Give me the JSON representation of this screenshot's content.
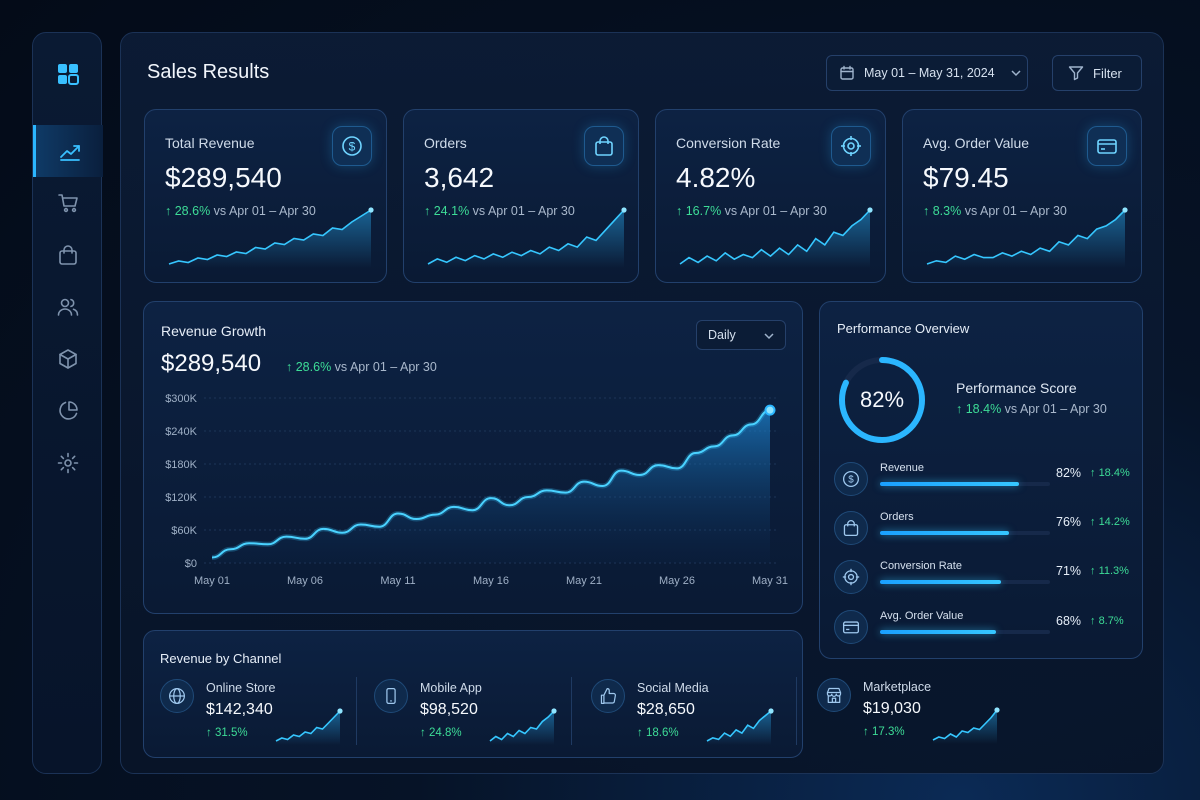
{
  "header": {
    "title": "Sales Results",
    "date_range": "May 01 – May 31, 2024",
    "filter_label": "Filter"
  },
  "sidebar": {
    "logo_icon": "grid-logo-icon",
    "items": [
      {
        "icon": "trend-chart-icon",
        "active": true
      },
      {
        "icon": "cart-icon",
        "active": false
      },
      {
        "icon": "shopping-bag-icon",
        "active": false
      },
      {
        "icon": "users-icon",
        "active": false
      },
      {
        "icon": "box-icon",
        "active": false
      },
      {
        "icon": "pie-chart-icon",
        "active": false
      },
      {
        "icon": "gear-icon",
        "active": false
      }
    ]
  },
  "kpis": [
    {
      "label": "Total Revenue",
      "value": "$289,540",
      "change": "28.6%",
      "compare": "vs Apr 01 – Apr 30",
      "icon": "dollar-icon",
      "spark": [
        8,
        10,
        9,
        12,
        11,
        14,
        13,
        16,
        15,
        19,
        18,
        22,
        21,
        25,
        24,
        28,
        27,
        32,
        31,
        36,
        40,
        44
      ]
    },
    {
      "label": "Orders",
      "value": "3,642",
      "change": "24.1%",
      "compare": "vs Apr 01 – Apr 30",
      "icon": "shopping-bag-icon",
      "spark": [
        8,
        11,
        9,
        12,
        10,
        13,
        11,
        14,
        12,
        15,
        13,
        16,
        14,
        18,
        16,
        20,
        18,
        24,
        22,
        28,
        34,
        40
      ]
    },
    {
      "label": "Conversion Rate",
      "value": "4.82%",
      "change": "16.7%",
      "compare": "vs Apr 01 – Apr 30",
      "icon": "target-icon",
      "spark": [
        8,
        12,
        9,
        13,
        10,
        15,
        11,
        14,
        12,
        17,
        13,
        18,
        14,
        20,
        16,
        24,
        20,
        28,
        26,
        32,
        36,
        42
      ]
    },
    {
      "label": "Avg. Order Value",
      "value": "$79.45",
      "change": "8.3%",
      "compare": "vs Apr 01 – Apr 30",
      "icon": "card-icon",
      "spark": [
        8,
        10,
        9,
        13,
        11,
        14,
        12,
        12,
        15,
        13,
        16,
        14,
        18,
        16,
        22,
        20,
        26,
        24,
        30,
        32,
        36,
        42
      ]
    }
  ],
  "revenue_growth": {
    "title": "Revenue Growth",
    "value": "$289,540",
    "change": "28.6%",
    "compare": "vs Apr 01 – Apr 30",
    "period_select": "Daily"
  },
  "chart_data": {
    "type": "area",
    "title": "Revenue Growth",
    "x": [
      "May 01",
      "May 02",
      "May 03",
      "May 04",
      "May 05",
      "May 06",
      "May 07",
      "May 08",
      "May 09",
      "May 10",
      "May 11",
      "May 12",
      "May 13",
      "May 14",
      "May 15",
      "May 16",
      "May 17",
      "May 18",
      "May 19",
      "May 20",
      "May 21",
      "May 22",
      "May 23",
      "May 24",
      "May 25",
      "May 26",
      "May 27",
      "May 28",
      "May 29",
      "May 30",
      "May 31"
    ],
    "values": [
      10000,
      25000,
      36000,
      34000,
      48000,
      44000,
      62000,
      55000,
      70000,
      66000,
      90000,
      80000,
      88000,
      102000,
      96000,
      118000,
      105000,
      120000,
      132000,
      128000,
      148000,
      140000,
      168000,
      160000,
      178000,
      172000,
      200000,
      212000,
      232000,
      252000,
      278000
    ],
    "xticks": [
      "May 01",
      "May 06",
      "May 11",
      "May 16",
      "May 21",
      "May 26",
      "May 31"
    ],
    "yticks": [
      "$0",
      "$60K",
      "$120K",
      "$180K",
      "$240K",
      "$300K"
    ],
    "ylim": [
      0,
      300000
    ],
    "grid": true
  },
  "performance": {
    "title": "Performance Overview",
    "score": "82%",
    "score_value": 82,
    "score_label": "Performance Score",
    "score_change": "18.4%",
    "score_compare": "vs Apr 01 – Apr 30",
    "metrics": [
      {
        "label": "Revenue",
        "pct": "82%",
        "value": 82,
        "change": "18.4%",
        "icon": "dollar-icon"
      },
      {
        "label": "Orders",
        "pct": "76%",
        "value": 76,
        "change": "14.2%",
        "icon": "shopping-bag-icon"
      },
      {
        "label": "Conversion Rate",
        "pct": "71%",
        "value": 71,
        "change": "11.3%",
        "icon": "target-icon"
      },
      {
        "label": "Avg. Order Value",
        "pct": "68%",
        "value": 68,
        "change": "8.7%",
        "icon": "card-icon"
      }
    ]
  },
  "channels": {
    "title": "Revenue by Channel",
    "items": [
      {
        "name": "Online Store",
        "value": "$142,340",
        "change": "31.5%",
        "icon": "globe-icon",
        "spark": [
          4,
          6,
          5,
          8,
          7,
          10,
          9,
          13,
          12,
          16,
          20,
          24
        ]
      },
      {
        "name": "Mobile App",
        "value": "$98,520",
        "change": "24.8%",
        "icon": "smartphone-icon",
        "spark": [
          4,
          7,
          5,
          9,
          7,
          11,
          9,
          13,
          12,
          17,
          20,
          24
        ]
      },
      {
        "name": "Social Media",
        "value": "$28,650",
        "change": "18.6%",
        "icon": "thumbs-up-icon",
        "spark": [
          4,
          6,
          5,
          9,
          7,
          11,
          9,
          14,
          12,
          17,
          20,
          23
        ]
      },
      {
        "name": "Marketplace",
        "value": "$19,030",
        "change": "17.3%",
        "icon": "storefront-icon",
        "spark": [
          4,
          6,
          5,
          8,
          6,
          10,
          9,
          12,
          11,
          15,
          19,
          24
        ]
      }
    ]
  },
  "colors": {
    "accent": "#2bb6ff",
    "positive": "#3ddc97",
    "background": "#061327"
  }
}
